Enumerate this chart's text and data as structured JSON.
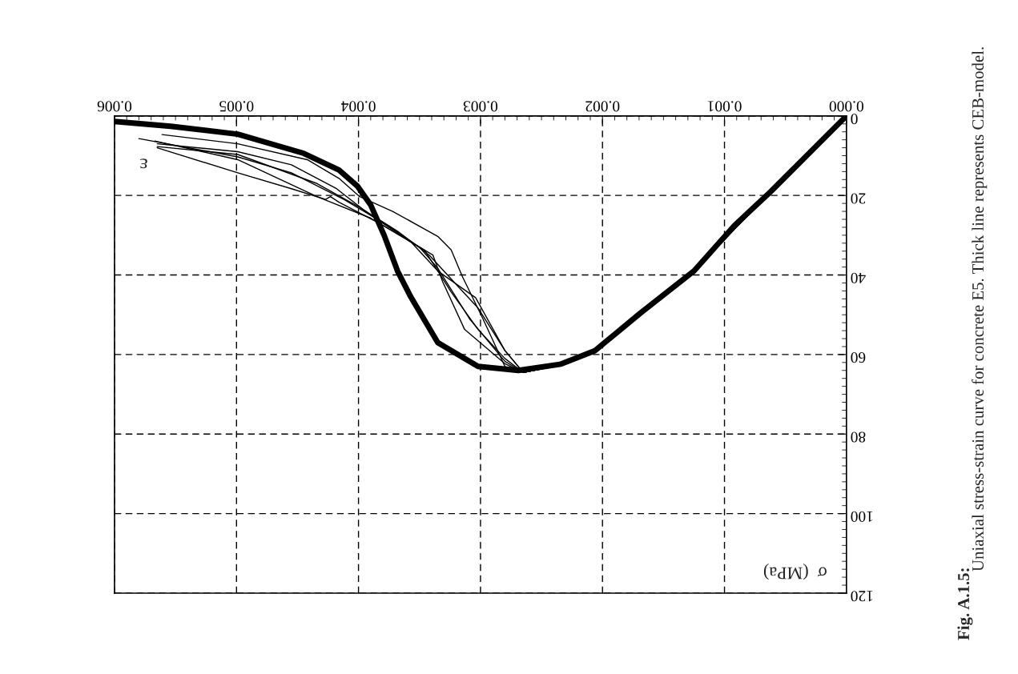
{
  "chart_data": {
    "type": "line",
    "xlabel": "ε",
    "ylabel": "σ  (MPa)",
    "annotations": [
      "Fig. A.1.5:",
      "Uniaxial stress-strain curve for concrete E5. Thick line represents CEB-model."
    ],
    "xlim": [
      0.006,
      0
    ],
    "ylim": [
      120,
      0
    ],
    "xticks": [
      {
        "value": 0,
        "label": "0.000"
      },
      {
        "value": 0.001,
        "label": "0.001"
      },
      {
        "value": 0.002,
        "label": "0.002"
      },
      {
        "value": 0.003,
        "label": "0.003"
      },
      {
        "value": 0.004,
        "label": "0.004"
      },
      {
        "value": 0.005,
        "label": "0.005"
      },
      {
        "value": 0.006,
        "label": "0.006"
      }
    ],
    "yticks": [
      0,
      20,
      40,
      60,
      80,
      100,
      120
    ],
    "grid": true,
    "marker": "none",
    "line_style": "solid",
    "series": [
      {
        "color": "#000000",
        "x": [
          0,
          0.00062,
          0.00092,
          0.00125,
          0.00169,
          0.00206,
          0.00234,
          0.00269,
          0.00302,
          0.00335,
          0.00357,
          0.00368,
          0.00379,
          0.0039,
          0.00401,
          0.00416,
          0.00445,
          0.00499,
          0.00554,
          0.006
        ],
        "values": [
          0,
          19,
          27.6,
          39,
          49.6,
          59,
          62.4,
          64,
          63,
          57,
          45.6,
          39,
          30,
          22.4,
          17.6,
          13.6,
          9.4,
          4.6,
          2.6,
          1.4
        ]
      },
      {
        "color": "#000000",
        "x": [
          0,
          0.00062,
          0.00125,
          0.00206,
          0.0024,
          0.00265,
          0.0028,
          0.00298,
          0.00315,
          0.00324,
          0.00335,
          0.00372,
          0.00399,
          0.00416,
          0.00442,
          0.00499,
          0.00561
        ],
        "values": [
          0,
          19,
          39,
          59,
          63,
          64.5,
          63,
          51,
          40.3,
          33.7,
          30.3,
          24,
          20.3,
          15.7,
          11,
          7,
          4.7
        ]
      },
      {
        "color": "#000000",
        "x": [
          0,
          0.00062,
          0.00125,
          0.00206,
          0.0024,
          0.00265,
          0.0028,
          0.00302,
          0.00324,
          0.00346,
          0.00383,
          0.00416,
          0.00423,
          0.00427,
          0.00455,
          0.00499,
          0.00565
        ],
        "values": [
          0,
          19,
          39,
          59,
          63,
          64.5,
          61,
          53.7,
          44.3,
          33.7,
          27,
          21.7,
          20.3,
          21,
          18.3,
          14.3,
          8
        ]
      },
      {
        "color": "#000000",
        "x": [
          0,
          0.00062,
          0.00125,
          0.00206,
          0.0024,
          0.00265,
          0.0028,
          0.00304,
          0.00335,
          0.00357,
          0.0039,
          0.00434,
          0.00499,
          0.00567
        ],
        "values": [
          0,
          19,
          39,
          59,
          63,
          64.5,
          59,
          45.7,
          39,
          31.7,
          25.7,
          20.3,
          11,
          6.3
        ]
      },
      {
        "color": "#000000",
        "x": [
          0,
          0.00062,
          0.00125,
          0.00206,
          0.0024,
          0.00265,
          0.0028,
          0.00309,
          0.00335,
          0.0035,
          0.00379,
          0.00412,
          0.00455,
          0.00499,
          0.0058
        ],
        "values": [
          0,
          19,
          39,
          59,
          63,
          64.5,
          61.7,
          51,
          38.3,
          33,
          27,
          21,
          14.3,
          10.3,
          5.7
        ]
      },
      {
        "color": "#000000",
        "x": [
          0,
          0.00062,
          0.00125,
          0.00206,
          0.0024,
          0.00265,
          0.0028,
          0.00313,
          0.00331,
          0.00339,
          0.00357,
          0.0039,
          0.00418,
          0.00455,
          0.00499,
          0.00565
        ],
        "values": [
          0,
          19,
          39,
          59,
          63,
          64.5,
          62.3,
          53.7,
          41.7,
          35,
          31.7,
          25,
          18.3,
          12.3,
          9,
          7
        ]
      },
      {
        "color": "#000000",
        "x": [
          0,
          0.00062,
          0.00125,
          0.00206,
          0.0024,
          0.00265,
          0.0028,
          0.00302,
          0.00318,
          0.00342,
          0.00368,
          0.00399,
          0.00434,
          0.00499,
          0.00565
        ],
        "values": [
          0,
          19,
          39,
          59,
          63,
          64.5,
          59,
          48.3,
          43,
          35,
          29,
          23,
          17,
          9.7,
          7.7
        ]
      }
    ]
  }
}
